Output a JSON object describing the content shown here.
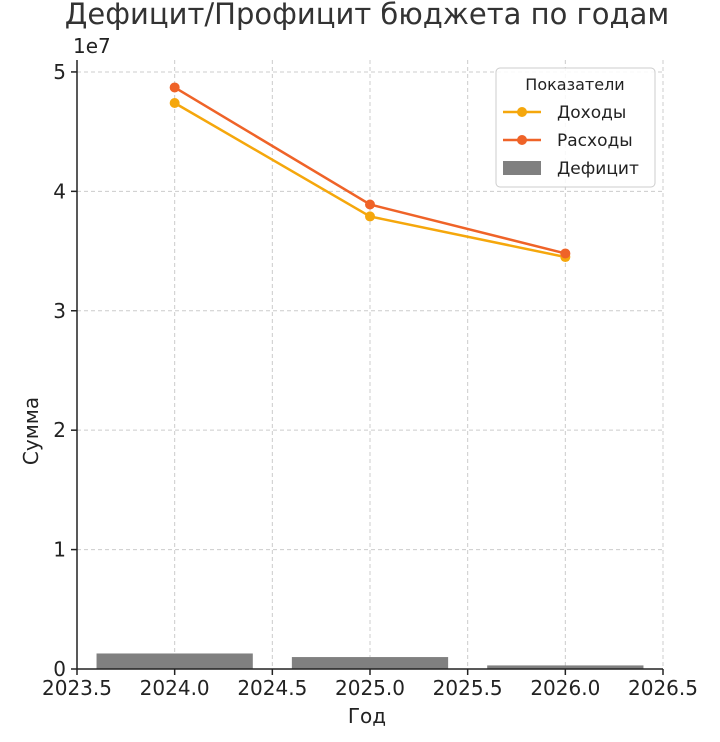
{
  "chart_data": {
    "type": "line",
    "title": "Дефицит/Профицит бюджета по годам",
    "xlabel": "Год",
    "ylabel": "Сумма",
    "y_offset_label": "1e7",
    "xlim": [
      2023.5,
      2026.5
    ],
    "ylim": [
      0,
      5.1
    ],
    "x_ticks": [
      2023.5,
      2024.0,
      2024.5,
      2025.0,
      2025.5,
      2026.0,
      2026.5
    ],
    "x_tick_labels": [
      "2023.5",
      "2024.0",
      "2024.5",
      "2025.0",
      "2025.5",
      "2026.0",
      "2026.5"
    ],
    "y_ticks": [
      0,
      1,
      2,
      3,
      4,
      5
    ],
    "y_tick_labels": [
      "0",
      "1",
      "2",
      "3",
      "4",
      "5"
    ],
    "grid": true,
    "legend": {
      "title": "Показатели",
      "placement": "top-right"
    },
    "x": [
      2024,
      2025,
      2026
    ],
    "series": [
      {
        "name": "Доходы",
        "kind": "line",
        "color": "#f5a70c",
        "values": [
          4.74,
          3.79,
          3.45
        ]
      },
      {
        "name": "Расходы",
        "kind": "line",
        "color": "#ef6328",
        "values": [
          4.87,
          3.89,
          3.48
        ]
      },
      {
        "name": "Дефицит",
        "kind": "bar",
        "color": "#808080",
        "values": [
          0.13,
          0.1,
          0.03
        ]
      }
    ]
  }
}
